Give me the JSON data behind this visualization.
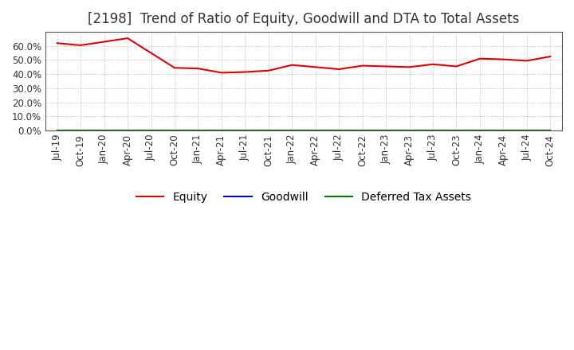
{
  "title": "[2198]  Trend of Ratio of Equity, Goodwill and DTA to Total Assets",
  "x_labels": [
    "Jul-19",
    "Oct-19",
    "Jan-20",
    "Apr-20",
    "Jul-20",
    "Oct-20",
    "Jan-21",
    "Apr-21",
    "Jul-21",
    "Oct-21",
    "Jan-22",
    "Apr-22",
    "Jul-22",
    "Oct-22",
    "Jan-23",
    "Apr-23",
    "Jul-23",
    "Oct-23",
    "Jan-24",
    "Apr-24",
    "Jul-24",
    "Oct-24"
  ],
  "equity": [
    62.0,
    60.5,
    63.0,
    65.5,
    55.0,
    44.5,
    44.0,
    41.0,
    41.5,
    42.5,
    46.5,
    45.0,
    43.5,
    46.0,
    45.5,
    45.0,
    47.0,
    45.5,
    51.0,
    50.5,
    49.5,
    52.5
  ],
  "goodwill": [
    0,
    0,
    0,
    0,
    0,
    0,
    0,
    0,
    0,
    0,
    0,
    0,
    0,
    0,
    0,
    0,
    0,
    0,
    0,
    0,
    0,
    0
  ],
  "dta": [
    0,
    0,
    0,
    0,
    0,
    0,
    0,
    0,
    0,
    0,
    0,
    0,
    0,
    0,
    0,
    0,
    0,
    0,
    0,
    0,
    0,
    0
  ],
  "equity_color": "#dd0000",
  "goodwill_color": "#0000cc",
  "dta_color": "#007700",
  "ylim": [
    0,
    70
  ],
  "yticks": [
    0,
    10,
    20,
    30,
    40,
    50,
    60
  ],
  "background_color": "#ffffff",
  "plot_bg_color": "#ffffff",
  "grid_color": "#999999",
  "title_fontsize": 12,
  "axis_fontsize": 8.5,
  "legend_fontsize": 10
}
